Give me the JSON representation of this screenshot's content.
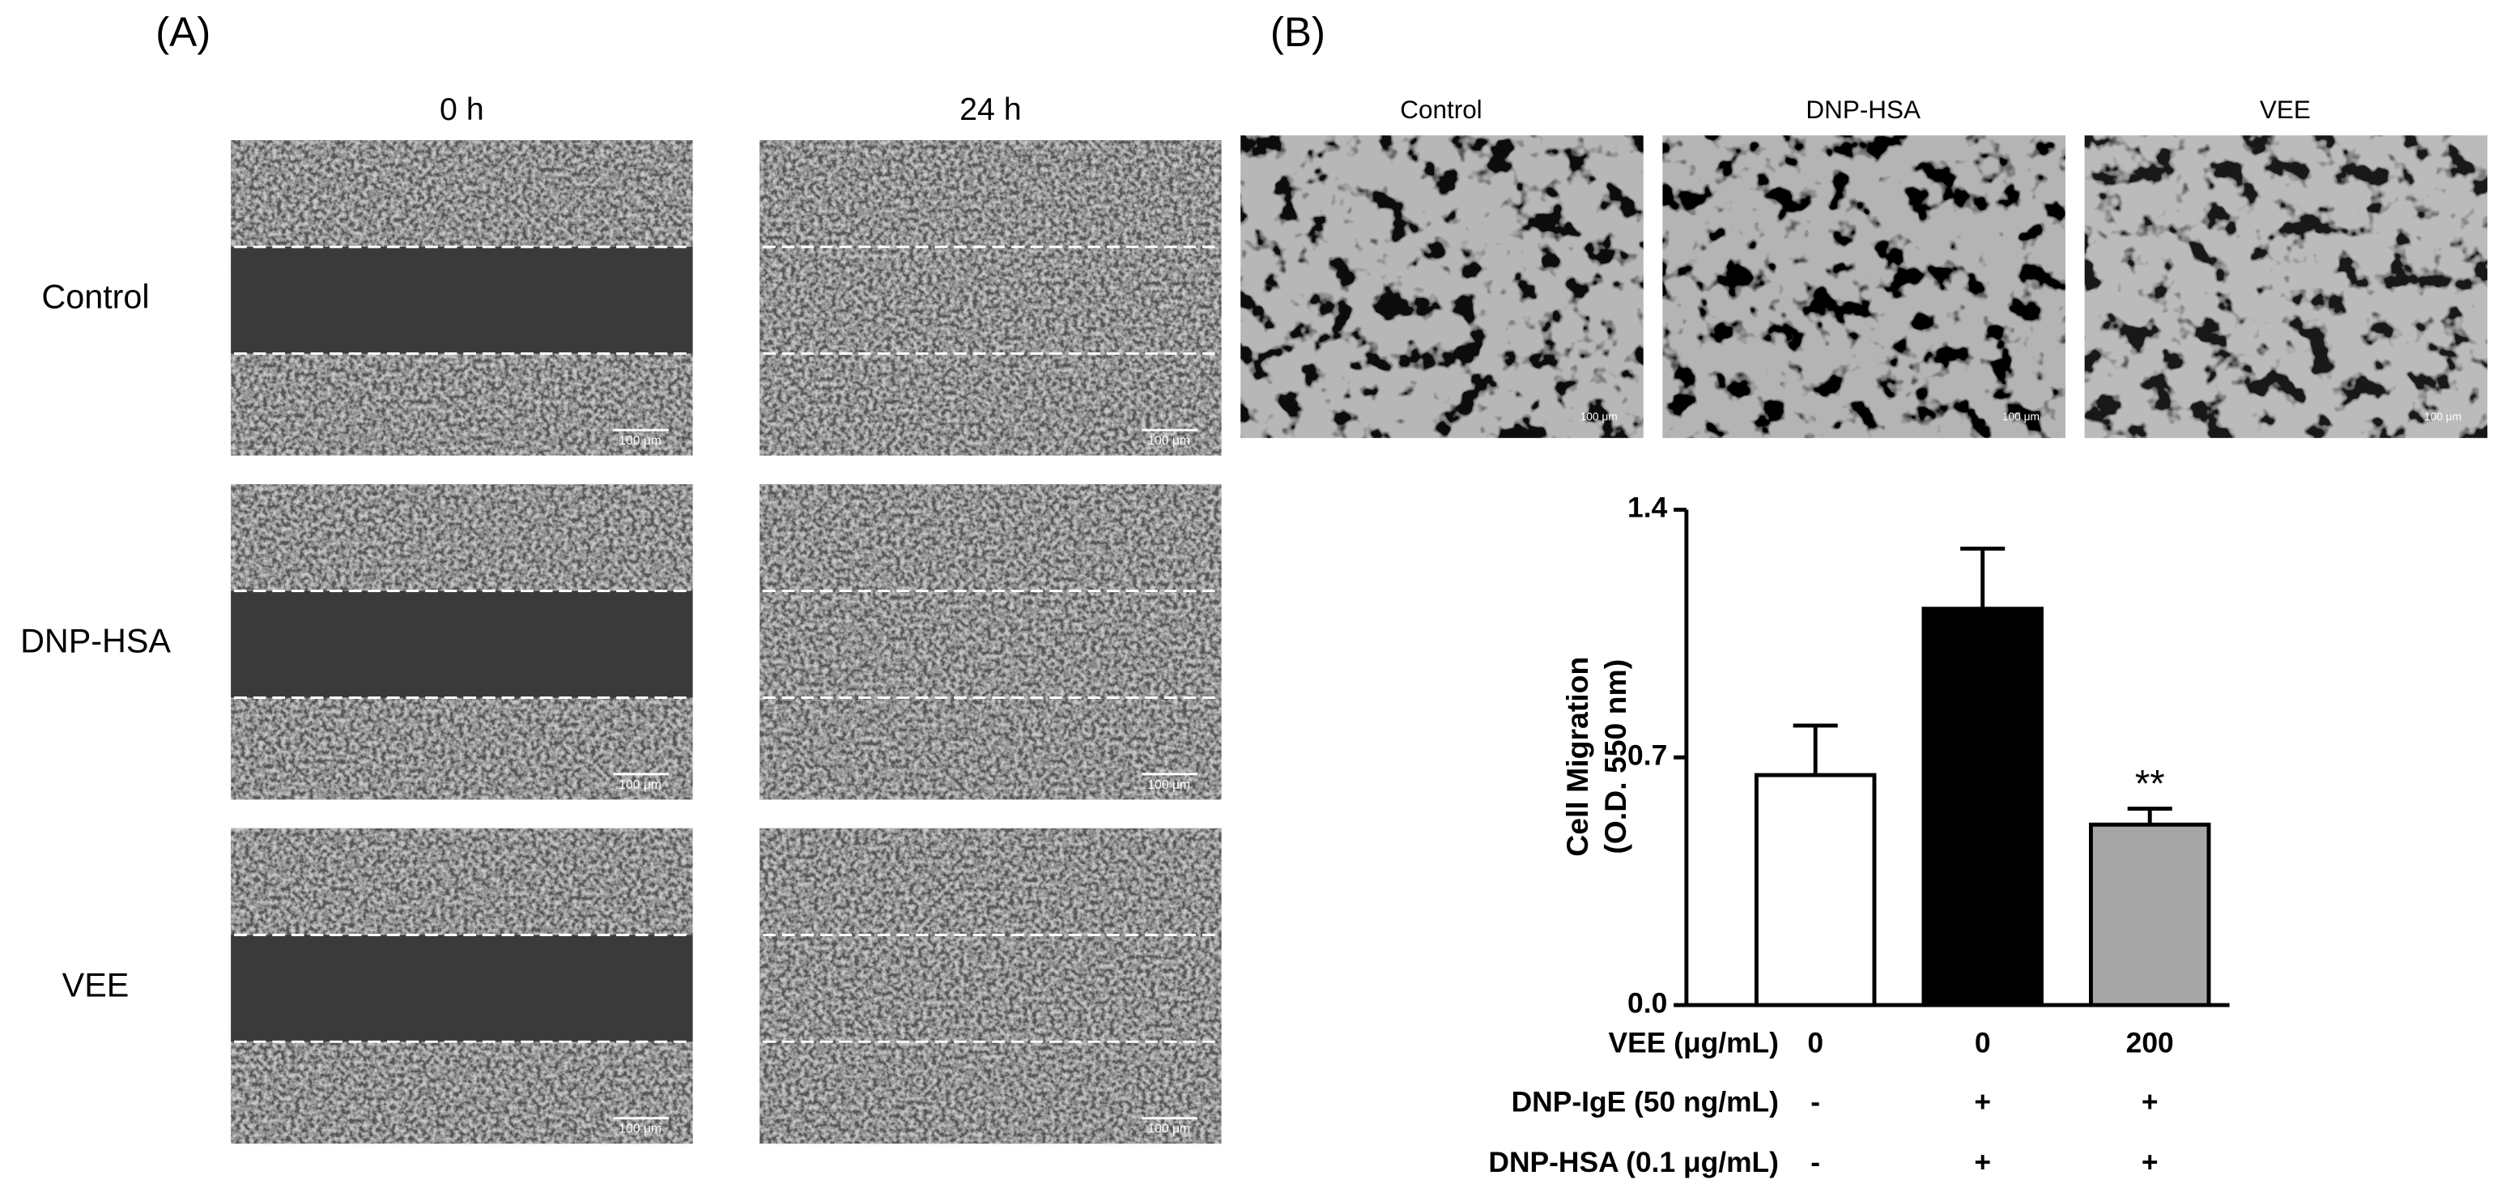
{
  "panel_a": {
    "label": "(A)",
    "columns": [
      "0 h",
      "24 h"
    ],
    "rows": [
      "Control",
      "DNP-HSA",
      "VEE"
    ],
    "scale_bar": "100 μm"
  },
  "panel_b": {
    "label": "(B)",
    "images": [
      "Control",
      "DNP-HSA",
      "VEE"
    ],
    "scale_bar": "100 μm"
  },
  "chart_data": {
    "type": "bar",
    "y_label": [
      "Cell Migration",
      "(O.D. 550 nm)"
    ],
    "series": [
      {
        "values": [
          0.65,
          1.12,
          0.51
        ],
        "errors": [
          0.14,
          0.17,
          0.045
        ],
        "colors": [
          "#ffffff",
          "#000000",
          "#a6a6a6"
        ]
      }
    ],
    "annotations": [
      {
        "index": 2,
        "text": "**"
      }
    ],
    "ylim": [
      0,
      1.4
    ],
    "yticks": [
      {
        "value": 0,
        "label": "0.0"
      },
      0.7,
      1.4
    ],
    "condition_rows": [
      {
        "label": "VEE (μg/mL)",
        "values": [
          "0",
          "0",
          "200"
        ]
      },
      {
        "label": "DNP-IgE (50 ng/mL)",
        "values": [
          "-",
          "+",
          "+"
        ]
      },
      {
        "label": "DNP-HSA (0.1 μg/mL)",
        "values": [
          "-",
          "+",
          "+"
        ]
      }
    ]
  }
}
